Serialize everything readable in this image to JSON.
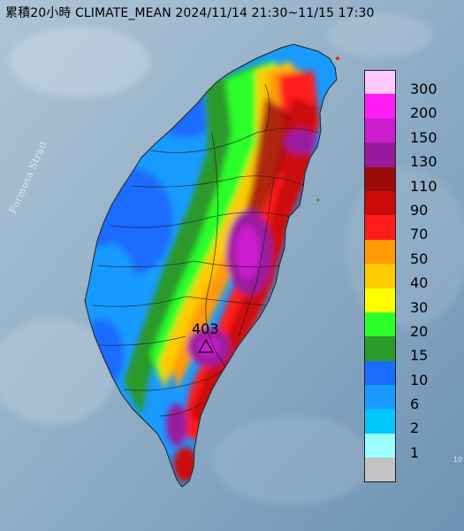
{
  "title": "累積20小時 CLIMATE_MEAN 2024/11/14 21:30~11/15 17:30",
  "strait_label": "Formosa Strait",
  "peak": {
    "value": "403",
    "marker_icon": "triangle-station-icon"
  },
  "edge_mark": "10",
  "legend": {
    "unit_scale": [
      {
        "label": "300",
        "color": "#ffc8f8"
      },
      {
        "label": "200",
        "color": "#ff1cf5"
      },
      {
        "label": "150",
        "color": "#cc1cd0"
      },
      {
        "label": "130",
        "color": "#9a1a9e"
      },
      {
        "label": "110",
        "color": "#9c0a0a"
      },
      {
        "label": "90",
        "color": "#cc0a0a"
      },
      {
        "label": "70",
        "color": "#ff1b1b"
      },
      {
        "label": "50",
        "color": "#ff9a07"
      },
      {
        "label": "40",
        "color": "#ffca00"
      },
      {
        "label": "30",
        "color": "#ffff00"
      },
      {
        "label": "20",
        "color": "#2cff2c"
      },
      {
        "label": "15",
        "color": "#2c992c"
      },
      {
        "label": "10",
        "color": "#1a6cff"
      },
      {
        "label": "6",
        "color": "#199aff"
      },
      {
        "label": "2",
        "color": "#00c8ff"
      },
      {
        "label": "1",
        "color": "#9bffff"
      },
      {
        "label": "",
        "color": "#c3c3c3"
      }
    ]
  }
}
